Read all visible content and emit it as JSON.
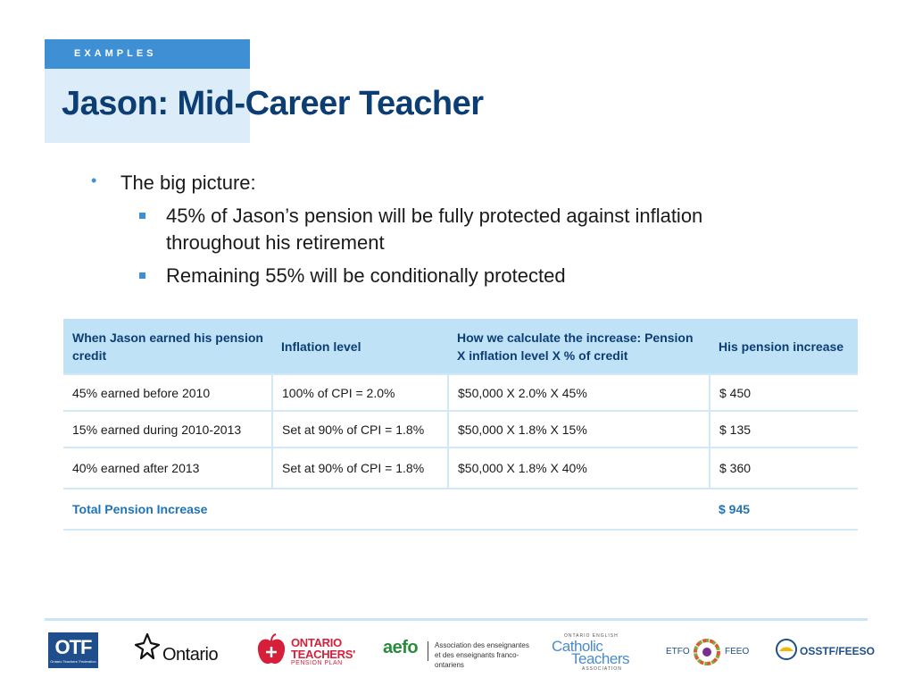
{
  "header": {
    "section_tag": "EXAMPLES",
    "title": "Jason: Mid-Career Teacher"
  },
  "bullets": {
    "main": "The big picture:",
    "sub": [
      "45% of Jason’s pension will be fully protected against inflation throughout his retirement",
      "Remaining 55% will be conditionally protected"
    ]
  },
  "table": {
    "headers": [
      "When Jason earned his pension credit",
      "Inflation level",
      "How we calculate the increase: Pension X inflation level X % of credit",
      "His pension increase"
    ],
    "rows": [
      [
        "45% earned before 2010",
        "100% of CPI = 2.0%",
        "$50,000 X 2.0% X 45%",
        "$ 450"
      ],
      [
        "15% earned during 2010-2013",
        "Set at 90% of CPI = 1.8%",
        "$50,000 X 1.8% X 15%",
        "$ 135"
      ],
      [
        "40% earned after 2013",
        "Set at 90% of CPI = 1.8%",
        "$50,000 X 1.8% X 40%",
        "$ 360"
      ]
    ],
    "total_label": "Total Pension Increase",
    "total_value": "$ 945"
  },
  "footer": {
    "logos": {
      "otf": {
        "name": "OTF",
        "sub": "Ontario Teachers' Federation"
      },
      "ontario": {
        "name": "Ontario"
      },
      "otpp": {
        "line1": "ONTARIO",
        "line2": "TEACHERS'",
        "line3": "PENSION PLAN"
      },
      "aefo": {
        "name": "aefo",
        "desc": "Association des enseignantes et des enseignants franco-ontariens"
      },
      "catholic": {
        "top": "ONTARIO ENGLISH",
        "line1": "Catholic",
        "line2": "Teachers",
        "bottom": "ASSOCIATION"
      },
      "etfo": {
        "left": "ETFO",
        "right": "FEEO"
      },
      "osstf": {
        "name": "OSSTF/FEESO"
      }
    }
  },
  "colors": {
    "accent_blue": "#3e8fd3",
    "title_navy": "#0d3e73",
    "table_header": "#bfe2f7",
    "total_blue": "#1f73b7"
  }
}
